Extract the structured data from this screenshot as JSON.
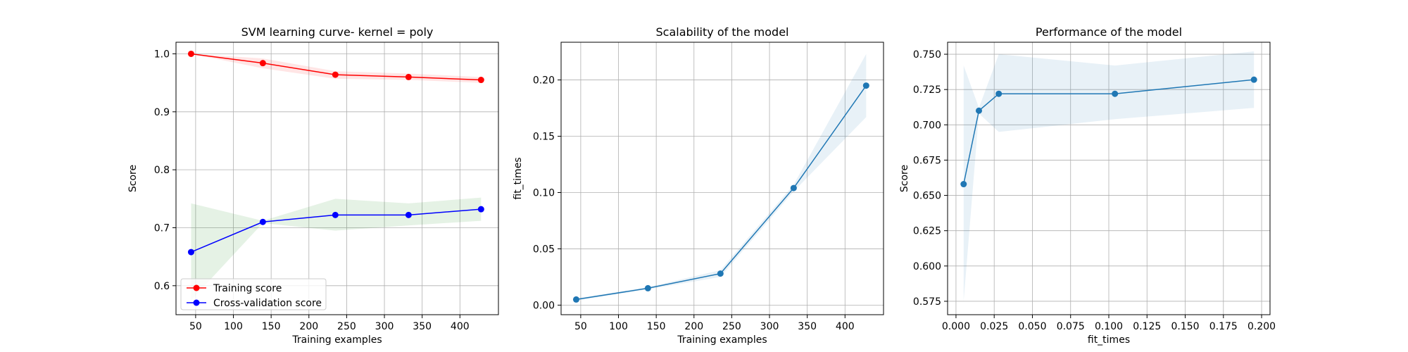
{
  "chart_data": [
    {
      "type": "line",
      "title": "SVM learning curve- kernel = poly",
      "xlabel": "Training examples",
      "ylabel": "Score",
      "xlim": [
        24,
        451
      ],
      "ylim": [
        0.55,
        1.02
      ],
      "xticks": [
        50,
        100,
        150,
        200,
        250,
        300,
        350,
        400
      ],
      "yticks": [
        0.6,
        0.7,
        0.8,
        0.9,
        1.0
      ],
      "ytick_decimals": 1,
      "grid": true,
      "legend_loc": "lower-left",
      "x": [
        44,
        139,
        235,
        332,
        428
      ],
      "series": [
        {
          "name": "Training score",
          "color": "#ff0000",
          "fill": "#ff0000",
          "values": [
            1.0,
            0.984,
            0.964,
            0.96,
            0.955
          ],
          "lower": [
            1.0,
            0.975,
            0.957,
            0.955,
            0.95
          ],
          "upper": [
            1.0,
            0.992,
            0.97,
            0.966,
            0.96
          ]
        },
        {
          "name": "Cross-validation score",
          "color": "#0000ff",
          "fill": "#008000",
          "values": [
            0.658,
            0.71,
            0.722,
            0.722,
            0.732
          ],
          "lower": [
            0.575,
            0.708,
            0.695,
            0.704,
            0.712
          ],
          "upper": [
            0.742,
            0.712,
            0.75,
            0.742,
            0.752
          ]
        }
      ]
    },
    {
      "type": "line",
      "title": "Scalability of the model",
      "xlabel": "Training examples",
      "ylabel": "fit_times",
      "xlim": [
        24,
        451
      ],
      "ylim": [
        -0.0085,
        0.2335
      ],
      "xticks": [
        50,
        100,
        150,
        200,
        250,
        300,
        350,
        400
      ],
      "yticks": [
        0.0,
        0.05,
        0.1,
        0.15,
        0.2
      ],
      "ytick_decimals": 2,
      "grid": true,
      "x": [
        44,
        139,
        235,
        332,
        428
      ],
      "series": [
        {
          "color": "#1f77b4",
          "fill": "#1f77b4",
          "values": [
            0.005,
            0.015,
            0.028,
            0.104,
            0.195
          ],
          "lower": [
            0.004,
            0.014,
            0.025,
            0.101,
            0.167
          ],
          "upper": [
            0.006,
            0.016,
            0.031,
            0.107,
            0.223
          ]
        }
      ]
    },
    {
      "type": "line",
      "title": "Performance of the model",
      "xlabel": "fit_times",
      "ylabel": "Score",
      "xlim": [
        -0.0055,
        0.2055
      ],
      "ylim": [
        0.5655,
        0.7585
      ],
      "xticks": [
        0.0,
        0.025,
        0.05,
        0.075,
        0.1,
        0.125,
        0.15,
        0.175,
        0.2
      ],
      "xtick_decimals": 3,
      "yticks": [
        0.575,
        0.6,
        0.625,
        0.65,
        0.675,
        0.7,
        0.725,
        0.75
      ],
      "ytick_decimals": 3,
      "grid": true,
      "x": [
        0.005,
        0.015,
        0.028,
        0.104,
        0.195
      ],
      "series": [
        {
          "color": "#1f77b4",
          "fill": "#1f77b4",
          "values": [
            0.658,
            0.71,
            0.722,
            0.722,
            0.732
          ],
          "lower": [
            0.575,
            0.708,
            0.695,
            0.704,
            0.712
          ],
          "upper": [
            0.742,
            0.712,
            0.75,
            0.742,
            0.752
          ]
        }
      ]
    }
  ]
}
